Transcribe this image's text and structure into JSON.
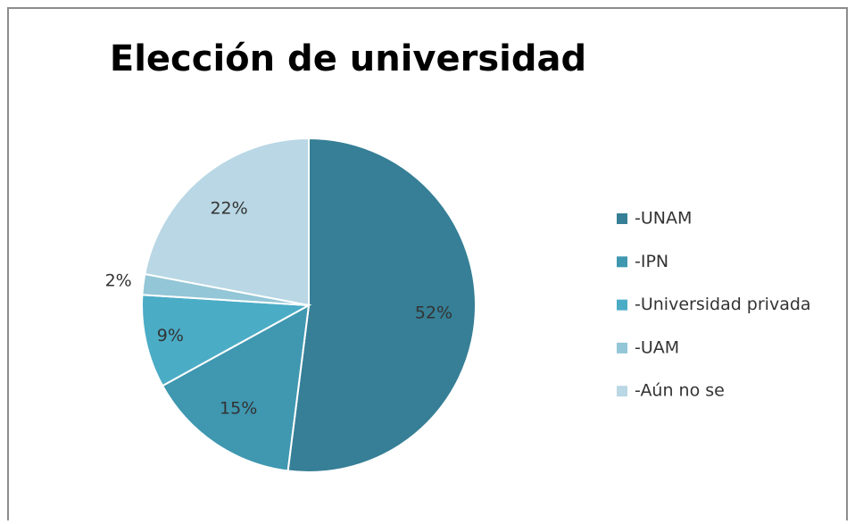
{
  "chart_data": {
    "type": "pie",
    "title": "Elección de universidad",
    "categories": [
      "-UNAM",
      "-IPN",
      "-Universidad privada",
      "-UAM",
      "-Aún no se"
    ],
    "values": [
      52,
      15,
      9,
      2,
      22
    ],
    "value_labels": [
      "52%",
      "15%",
      "9%",
      "2%",
      "22%"
    ],
    "colors": [
      "#367f96",
      "#3f97b0",
      "#4bacc6",
      "#93c6d6",
      "#b9d7e4"
    ],
    "legend": "right"
  }
}
